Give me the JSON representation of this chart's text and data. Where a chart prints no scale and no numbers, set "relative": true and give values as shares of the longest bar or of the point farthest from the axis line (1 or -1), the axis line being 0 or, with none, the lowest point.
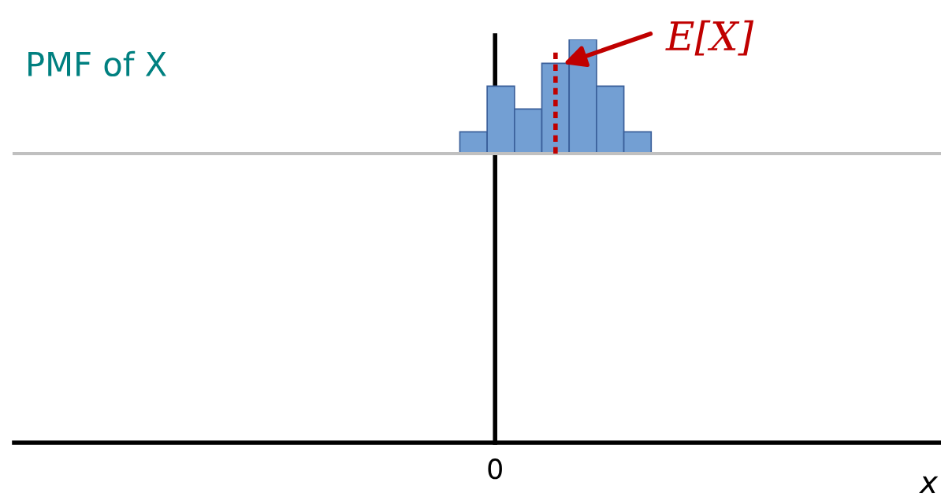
{
  "chart_data": {
    "type": "bar",
    "title": "PMF of X",
    "relative": true,
    "categories": [
      null,
      null,
      null,
      null,
      null,
      null,
      null
    ],
    "values": [
      0.19,
      0.59,
      0.39,
      0.79,
      1,
      0.59,
      0.19
    ],
    "color": "#739fd3",
    "ref_lines": [
      {
        "axis": "x",
        "label": "E[X]",
        "color": "#c00000",
        "line_style": "dashed"
      }
    ],
    "annotations": [
      "0",
      "x"
    ]
  }
}
